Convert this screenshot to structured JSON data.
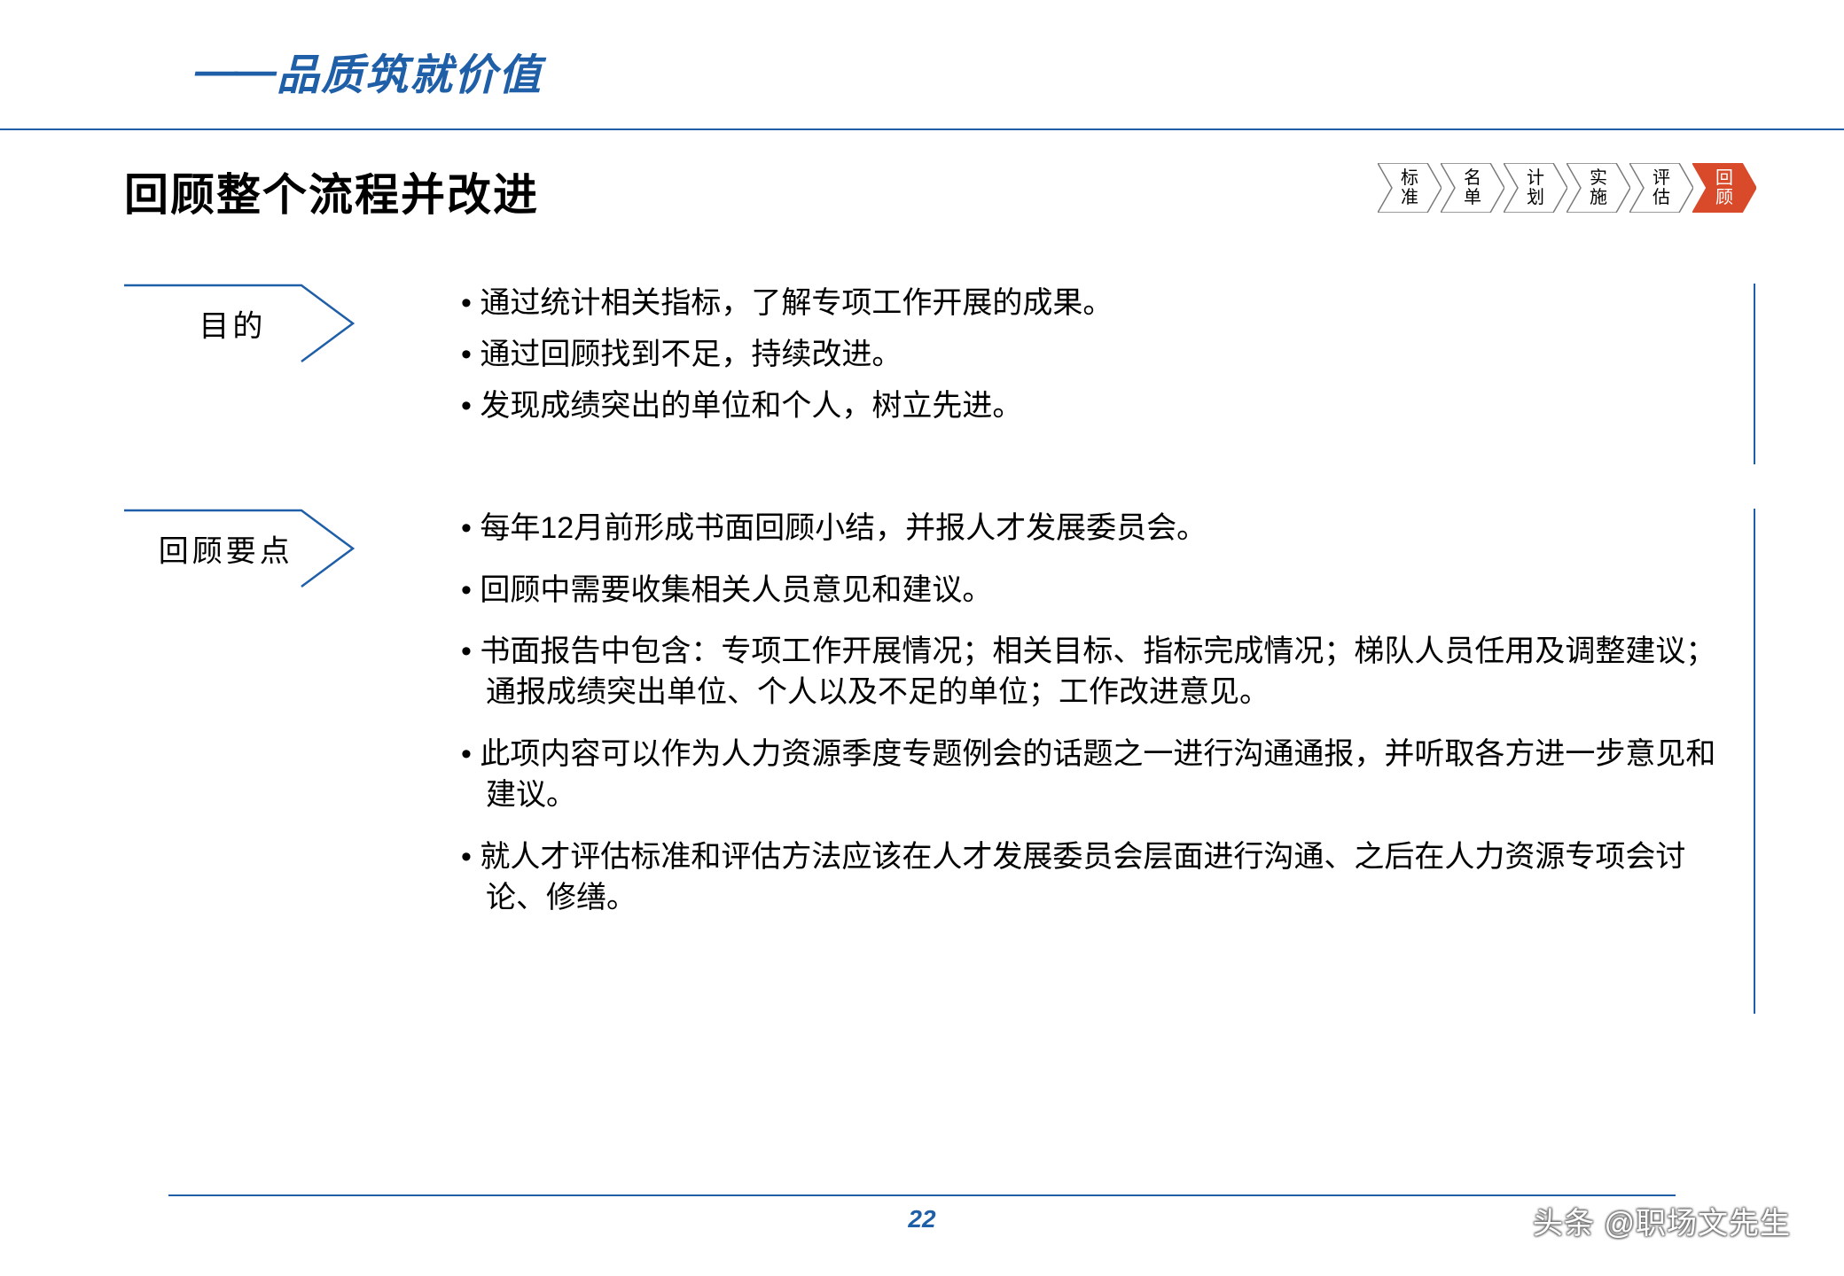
{
  "colors": {
    "accent": "#1f5fa8",
    "crumb_stroke": "#7a7a7a",
    "crumb_active_fill": "#d84a2a",
    "text": "#000000",
    "bg": "#ffffff"
  },
  "header": {
    "dash": "——",
    "tagline": "品质筑就价值"
  },
  "title": "回顾整个流程并改进",
  "crumbs": [
    {
      "label": "标\n准",
      "active": false
    },
    {
      "label": "名\n单",
      "active": false
    },
    {
      "label": "计\n划",
      "active": false
    },
    {
      "label": "实\n施",
      "active": false
    },
    {
      "label": "评\n估",
      "active": false
    },
    {
      "label": "回\n顾",
      "active": true
    }
  ],
  "sections": [
    {
      "label": "目的",
      "tall": false,
      "spaced": false,
      "items": [
        "通过统计相关指标，了解专项工作开展的成果。",
        "通过回顾找到不足，持续改进。",
        "发现成绩突出的单位和个人，树立先进。"
      ]
    },
    {
      "label": "回顾要点",
      "tall": true,
      "spaced": true,
      "items": [
        "每年12月前形成书面回顾小结，并报人才发展委员会。",
        "回顾中需要收集相关人员意见和建议。",
        "书面报告中包含：专项工作开展情况；相关目标、指标完成情况；梯队人员任用及调整建议；通报成绩突出单位、个人以及不足的单位；工作改进意见。",
        "此项内容可以作为人力资源季度专题例会的话题之一进行沟通通报，并听取各方进一步意见和建议。",
        "就人才评估标准和评估方法应该在人才发展委员会层面进行沟通、之后在人力资源专项会讨论、修缮。"
      ]
    }
  ],
  "footer": {
    "page_number": "22",
    "watermark": "头条 @职场文先生"
  }
}
